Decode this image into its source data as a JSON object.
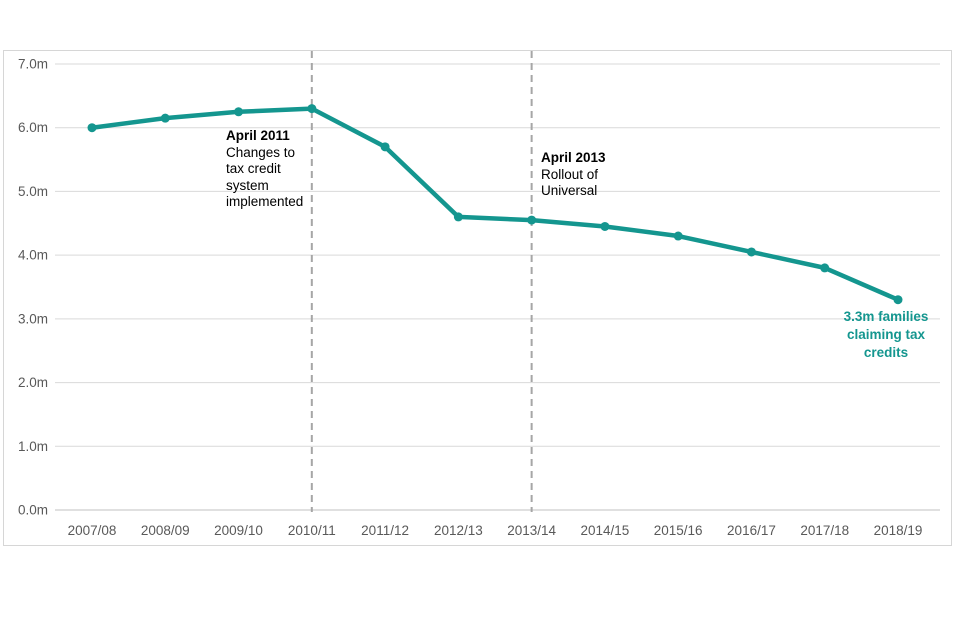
{
  "chart_data": {
    "type": "line",
    "title": "",
    "xlabel": "",
    "ylabel": "",
    "categories": [
      "2007/08",
      "2008/09",
      "2009/10",
      "2010/11",
      "2011/12",
      "2012/13",
      "2013/14",
      "2014/15",
      "2015/16",
      "2016/17",
      "2017/18",
      "2018/19"
    ],
    "values": [
      6.0,
      6.15,
      6.25,
      6.3,
      5.7,
      4.6,
      4.55,
      4.45,
      4.3,
      4.05,
      3.8,
      3.3
    ],
    "ylim": [
      0,
      7
    ],
    "y_ticks": [
      "0.0m",
      "1.0m",
      "2.0m",
      "3.0m",
      "4.0m",
      "5.0m",
      "6.0m",
      "7.0m"
    ],
    "grid": "horizontal",
    "reference_lines": [
      {
        "category": "2010/11",
        "style": "dashed"
      },
      {
        "category": "2013/14",
        "style": "dashed"
      }
    ],
    "annotations": [
      {
        "title": "April 2011",
        "lines": [
          "Changes to",
          "tax credit",
          "system",
          "implemented"
        ]
      },
      {
        "title": "April 2013",
        "lines": [
          "Rollout of",
          "Universal"
        ]
      }
    ],
    "end_label": {
      "lines": [
        "3.3m families",
        "claiming tax",
        "credits"
      ]
    },
    "colors": {
      "series": "#14968f",
      "gridline": "#d9d9d9",
      "baseline": "#c2c2c2",
      "tick_label": "#595959",
      "reference_line": "#a6a6a6",
      "annotation_text": "#000000",
      "frame_border": "#d6d6d6"
    }
  }
}
